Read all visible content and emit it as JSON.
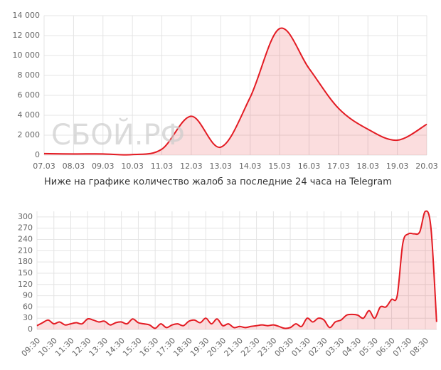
{
  "watermark": "СБОЙ.РФ",
  "caption": "Ниже на графике количество жалоб за последние 24 часа на Telegram",
  "chart_data": [
    {
      "type": "line",
      "color": "#e31b23",
      "grid": true,
      "categories": [
        "07.03",
        "08.03",
        "09.03",
        "10.03",
        "11.03",
        "12.03",
        "13.03",
        "14.03",
        "15.03",
        "16.03",
        "17.03",
        "18.03",
        "19.03",
        "20.03"
      ],
      "series": [
        {
          "color": "#e31b23",
          "values": [
            150,
            120,
            120,
            50,
            600,
            3900,
            800,
            5800,
            12700,
            8700,
            4700,
            2600,
            1500,
            3100
          ]
        }
      ],
      "ylim": [
        0,
        14000
      ],
      "yticks": [
        0,
        {
          "value": 2000,
          "label": "2 000"
        },
        {
          "value": 4000,
          "label": "4 000"
        },
        {
          "value": 6000,
          "label": "6 000"
        },
        {
          "value": 8000,
          "label": "8 000"
        },
        {
          "value": 10000,
          "label": "10 000"
        },
        {
          "value": 12000,
          "label": "12 000"
        },
        {
          "value": 14000,
          "label": "14 000"
        }
      ]
    },
    {
      "type": "line",
      "color": "#e31b23",
      "grid": true,
      "categories": [
        "09:30",
        null,
        null,
        "10:30",
        null,
        null,
        "11:30",
        null,
        null,
        "12:30",
        null,
        null,
        "13:30",
        null,
        null,
        "14:30",
        null,
        null,
        "15:30",
        null,
        null,
        "16:30",
        null,
        null,
        "17:30",
        null,
        null,
        "18:30",
        null,
        null,
        "19:30",
        null,
        null,
        "20:30",
        null,
        null,
        "21:30",
        null,
        null,
        "22:30",
        null,
        null,
        "23:30",
        null,
        null,
        "00:30",
        null,
        null,
        "01:30",
        null,
        null,
        "02:30",
        null,
        null,
        "03:30",
        null,
        null,
        "04:30",
        null,
        null,
        "05:30",
        null,
        null,
        "06:30",
        null,
        null,
        "07:30",
        null,
        null,
        "08:30",
        null,
        null
      ],
      "series": [
        {
          "color": "#e31b23",
          "values": [
            10,
            18,
            25,
            15,
            20,
            12,
            15,
            18,
            15,
            28,
            25,
            20,
            22,
            12,
            18,
            20,
            15,
            28,
            18,
            15,
            12,
            3,
            15,
            5,
            12,
            15,
            10,
            22,
            25,
            18,
            30,
            15,
            28,
            10,
            15,
            5,
            8,
            5,
            8,
            10,
            12,
            10,
            12,
            8,
            3,
            5,
            15,
            8,
            30,
            20,
            30,
            25,
            5,
            20,
            25,
            38,
            40,
            38,
            30,
            50,
            30,
            60,
            60,
            80,
            90,
            230,
            255,
            255,
            260,
            315,
            270,
            20
          ]
        }
      ],
      "ylim": [
        0,
        315
      ],
      "yticks": [
        0,
        30,
        60,
        90,
        120,
        150,
        180,
        210,
        240,
        270,
        300
      ]
    }
  ]
}
